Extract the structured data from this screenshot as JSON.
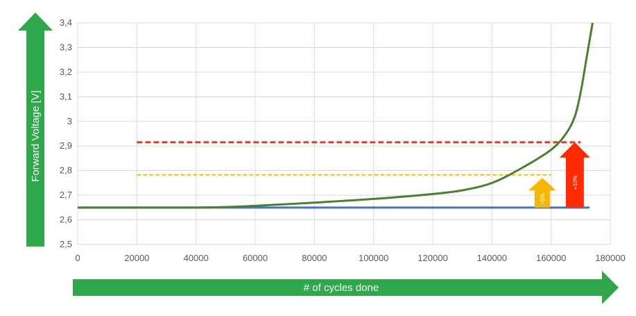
{
  "chart_data": {
    "type": "line",
    "xlabel": "# of cycles done",
    "ylabel": "Forward Voltage [V]",
    "xlim": [
      0,
      180000
    ],
    "ylim": [
      2.5,
      3.4
    ],
    "xticks": [
      "0",
      "20000",
      "40000",
      "60000",
      "80000",
      "100000",
      "120000",
      "140000",
      "160000",
      "180000"
    ],
    "yticks": [
      "2,5",
      "2,6",
      "2,7",
      "2,8",
      "2,9",
      "3",
      "3,1",
      "3,2",
      "3,3",
      "3,4"
    ],
    "grid": true,
    "series": [
      {
        "color": "#4a7f2c",
        "x": [
          0,
          20000,
          40000,
          50000,
          60000,
          80000,
          100000,
          120000,
          130000,
          140000,
          150000,
          160000,
          165000,
          168000,
          170000,
          172000,
          174000
        ],
        "y": [
          2.65,
          2.65,
          2.65,
          2.652,
          2.657,
          2.67,
          2.685,
          2.705,
          2.72,
          2.75,
          2.81,
          2.885,
          2.95,
          3.02,
          3.12,
          3.26,
          3.4
        ]
      }
    ],
    "reference_lines": [
      {
        "color": "#4472c4",
        "style": "solid",
        "y": 2.65,
        "x_range": [
          0,
          173000
        ]
      },
      {
        "color": "#ffc000",
        "style": "dashed",
        "y": 2.783,
        "x_range": [
          20000,
          160000
        ]
      },
      {
        "color": "#e03c1f",
        "style": "dashed",
        "y": 2.915,
        "x_range": [
          20000,
          170000
        ]
      }
    ],
    "annotations": [
      {
        "text": "+5%",
        "color": "#f5b700",
        "x": 157000,
        "y_from": 2.65,
        "y_to": 2.77
      },
      {
        "text": "+10%",
        "color": "#ff2a00",
        "x": 168000,
        "y_from": 2.65,
        "y_to": 2.915
      }
    ]
  }
}
